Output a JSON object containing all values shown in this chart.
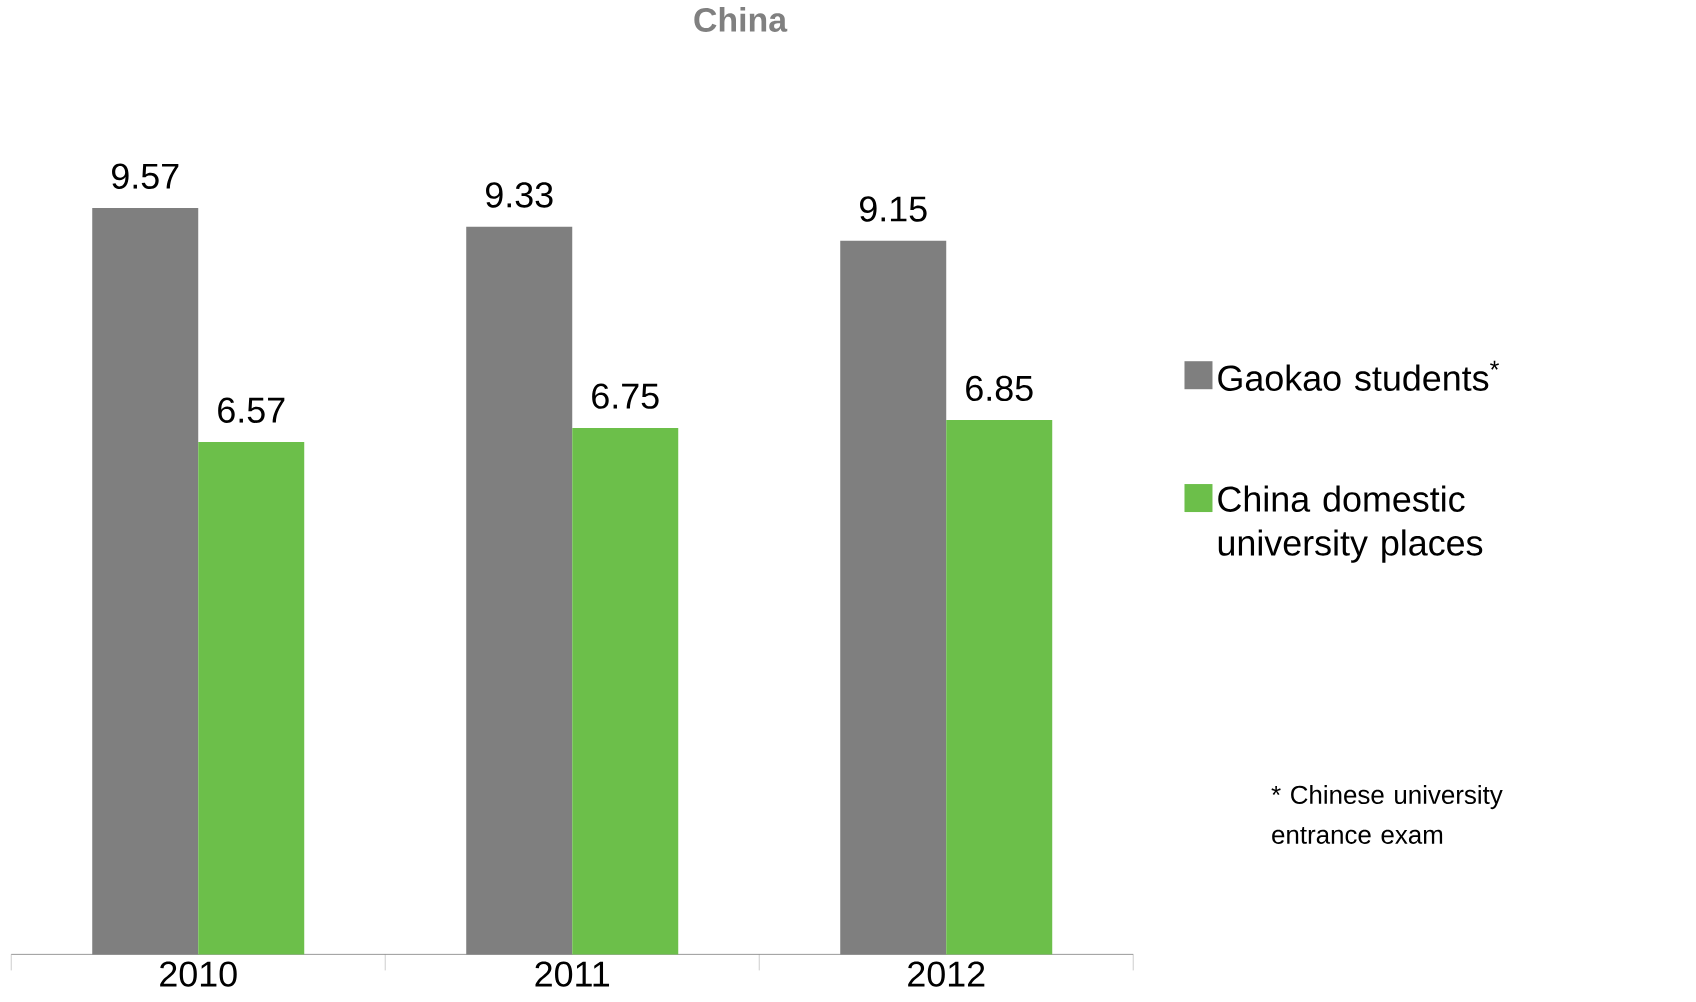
{
  "chart_data": {
    "type": "bar",
    "title": "China",
    "categories": [
      "2010",
      "2011",
      "2012"
    ],
    "series": [
      {
        "name": "Gaokao students$^{*}$",
        "color": "#7f7f7f",
        "values": [
          9.57,
          9.33,
          9.15
        ]
      },
      {
        "name": "China domestic university places",
        "color": "#6cbf4a",
        "values": [
          6.57,
          6.75,
          6.85
        ]
      }
    ],
    "data_labels": true,
    "legend": "right",
    "annotations": [
      "* Chinese university entrance exam"
    ]
  }
}
